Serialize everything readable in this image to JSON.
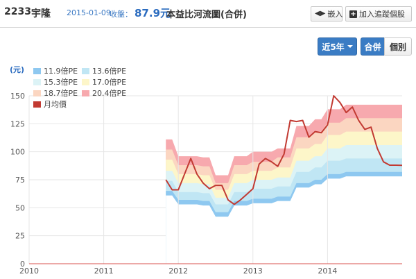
{
  "header": {
    "stock_code": "2233",
    "stock_name": "宇隆",
    "date": "2015-01-09",
    "close_label": "收盤：",
    "price": "87.9元",
    "title": "本益比河流圖(合併)",
    "embed_label": "嵌入",
    "track_label": "加入追蹤個股"
  },
  "controls": {
    "period_label": "近5年",
    "merged_label": "合併",
    "individual_label": "個別"
  },
  "chart_data": {
    "type": "area",
    "ylabel": "(元)",
    "ylim": [
      0,
      150
    ],
    "yticks": [
      0,
      25,
      50,
      75,
      100,
      125,
      150
    ],
    "xticks": [
      {
        "label": "2010",
        "x": 2010.0
      },
      {
        "label": "2011",
        "x": 2011.0
      },
      {
        "label": "2012",
        "x": 2012.0
      },
      {
        "label": "2013",
        "x": 2013.0
      },
      {
        "label": "2014",
        "x": 2014.0
      }
    ],
    "xlim": [
      2010.0,
      2015.0
    ],
    "band_colors": [
      "#8ec8f0",
      "#c0e6f4",
      "#dcf3f6",
      "#fdf6c9",
      "#fbd6c1",
      "#f7a9ae"
    ],
    "line_color": "#c23a32",
    "legend": [
      {
        "label": "11.9倍PE",
        "color": "#8ec8f0"
      },
      {
        "label": "13.6倍PE",
        "color": "#c0e6f4"
      },
      {
        "label": "15.3倍PE",
        "color": "#dcf3f6"
      },
      {
        "label": "17.0倍PE",
        "color": "#fdf6c9"
      },
      {
        "label": "18.7倍PE",
        "color": "#fbd6c1"
      },
      {
        "label": "20.4倍PE",
        "color": "#f7a9ae"
      },
      {
        "label": "月均價",
        "color": "#c23a32"
      }
    ],
    "band_dates": [
      2011.833,
      2011.917,
      2012.0,
      2012.25,
      2012.333,
      2012.417,
      2012.5,
      2012.583,
      2012.667,
      2012.75,
      2012.833,
      2012.917,
      2013.0,
      2013.25,
      2013.333,
      2013.5,
      2013.583,
      2013.75,
      2013.833,
      2013.917,
      2014.0,
      2014.167,
      2014.25,
      2014.5,
      2014.583,
      2014.667,
      2014.917,
      2015.0
    ],
    "pe_series": [
      {
        "name": "11.9倍PE",
        "values": [
          65,
          65,
          57,
          57,
          56,
          56,
          46,
          46,
          46,
          56,
          56,
          56,
          58,
          58,
          60,
          60,
          72,
          72,
          75,
          75,
          80,
          80,
          82,
          82,
          82,
          82,
          82,
          82
        ]
      },
      {
        "name": "13.6倍PE",
        "values": [
          74,
          74,
          64,
          64,
          63,
          63,
          53,
          53,
          53,
          64,
          64,
          64,
          67,
          67,
          69,
          69,
          82,
          82,
          86,
          86,
          92,
          92,
          94,
          94,
          94,
          94,
          94,
          94
        ]
      },
      {
        "name": "15.3倍PE",
        "values": [
          83,
          83,
          72,
          72,
          71,
          71,
          59,
          59,
          59,
          72,
          72,
          72,
          75,
          75,
          77,
          77,
          92,
          92,
          96,
          96,
          103,
          103,
          106,
          106,
          106,
          106,
          106,
          106
        ]
      },
      {
        "name": "17.0倍PE",
        "values": [
          93,
          93,
          80,
          80,
          79,
          79,
          66,
          66,
          66,
          80,
          80,
          80,
          83,
          83,
          86,
          86,
          103,
          103,
          107,
          107,
          115,
          115,
          118,
          118,
          118,
          118,
          118,
          118
        ]
      },
      {
        "name": "18.7倍PE",
        "values": [
          102,
          102,
          88,
          88,
          87,
          87,
          72,
          72,
          72,
          88,
          88,
          88,
          91,
          91,
          95,
          95,
          113,
          113,
          118,
          118,
          126,
          126,
          130,
          130,
          130,
          130,
          130,
          130
        ]
      },
      {
        "name": "20.4倍PE",
        "values": [
          111,
          111,
          96,
          96,
          95,
          95,
          79,
          79,
          79,
          96,
          96,
          96,
          100,
          100,
          103,
          103,
          123,
          123,
          129,
          129,
          138,
          138,
          142,
          142,
          142,
          142,
          142,
          142
        ]
      }
    ],
    "series": [
      {
        "name": "月均價",
        "x": [
          2011.833,
          2011.917,
          2012.0,
          2012.083,
          2012.167,
          2012.25,
          2012.333,
          2012.417,
          2012.5,
          2012.583,
          2012.667,
          2012.75,
          2012.833,
          2012.917,
          2013.0,
          2013.083,
          2013.167,
          2013.25,
          2013.333,
          2013.417,
          2013.5,
          2013.583,
          2013.667,
          2013.75,
          2013.833,
          2013.917,
          2014.0,
          2014.083,
          2014.167,
          2014.25,
          2014.333,
          2014.417,
          2014.5,
          2014.583,
          2014.667,
          2014.75,
          2014.833,
          2014.917,
          2015.0
        ],
        "values": [
          75,
          66,
          66,
          80,
          94,
          80,
          72,
          67,
          70,
          70,
          57,
          53,
          57,
          62,
          67,
          89,
          94,
          91,
          87,
          98,
          128,
          127,
          128,
          113,
          118,
          117,
          124,
          150,
          144,
          135,
          140,
          128,
          120,
          122,
          103,
          91,
          88,
          88,
          87.9
        ]
      }
    ]
  }
}
